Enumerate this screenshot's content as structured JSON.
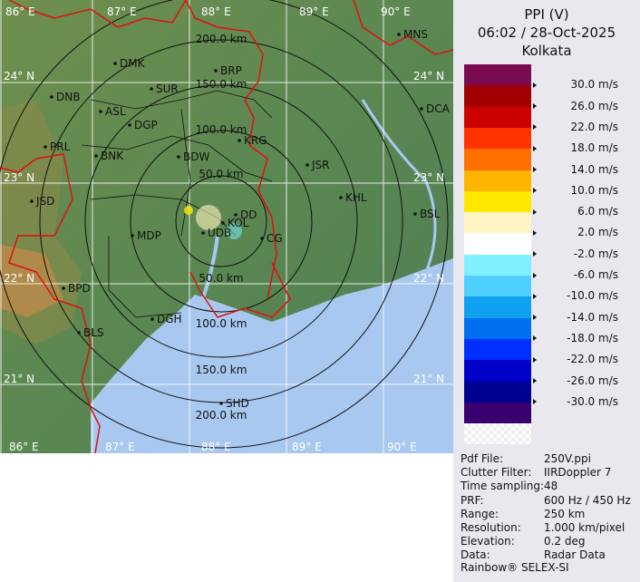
{
  "header": {
    "product": "PPI (V)",
    "datetime": "06:02 / 28-Oct-2025",
    "station": "Kolkata"
  },
  "legend": {
    "unit": "m/s",
    "colors": [
      "#7a0a52",
      "#a00000",
      "#cc0000",
      "#ff3300",
      "#ff7000",
      "#ffb400",
      "#ffe800",
      "#fff5c4",
      "#ffffff",
      "#80f0ff",
      "#50d0ff",
      "#10a0f0",
      "#0070f0",
      "#0030ff",
      "#0000c8",
      "#000090",
      "#3a0070"
    ],
    "labels": [
      "30.0 m/s",
      "26.0 m/s",
      "22.0 m/s",
      "18.0 m/s",
      "14.0 m/s",
      "10.0 m/s",
      "6.0 m/s",
      "2.0 m/s",
      "-2.0 m/s",
      "-6.0 m/s",
      "-10.0 m/s",
      "-14.0 m/s",
      "-18.0 m/s",
      "-22.0 m/s",
      "-26.0 m/s",
      "-30.0 m/s"
    ]
  },
  "info": [
    {
      "key": "Pdf File:",
      "value": "250V.ppi"
    },
    {
      "key": "Clutter Filter:",
      "value": "IIRDoppler 7"
    },
    {
      "key": "Time sampling:",
      "value": "48"
    },
    {
      "key": "PRF:",
      "value": "600 Hz / 450 Hz"
    },
    {
      "key": "Range:",
      "value": "250 km"
    },
    {
      "key": "Resolution:",
      "value": "1.000 km/pixel"
    },
    {
      "key": "Elevation:",
      "value": "0.2 deg"
    },
    {
      "key": "Data:",
      "value": "Radar Data"
    }
  ],
  "footer": "Rainbow® SELEX-SI",
  "map": {
    "lon_labels": [
      "86° E",
      "87° E",
      "88° E",
      "89° E",
      "90° E"
    ],
    "lon_labels_bottom": [
      "86° E",
      "87° E",
      "88° E",
      "89° E",
      "90° E"
    ],
    "lat_labels": [
      "24° N",
      "23° N",
      "22° N",
      "21° N"
    ],
    "range_rings_km": [
      50,
      100,
      150,
      200,
      250
    ],
    "ring_labels_top": [
      "200.0 km",
      "150.0 km",
      "100.0 km",
      "50.0 km"
    ],
    "ring_labels_bottom": [
      "50.0 km",
      "100.0 km",
      "150.0 km",
      "200.0 km"
    ],
    "cities": [
      "MNS",
      "DMK",
      "BRP",
      "DNB",
      "SUR",
      "ASL",
      "DGP",
      "DCA",
      "KRG",
      "PRL",
      "BNK",
      "BDW",
      "JSR",
      "KHL",
      "JSD",
      "BSL",
      "DD",
      "KOL",
      "UDB",
      "MDP",
      "CG",
      "BPD",
      "DGH",
      "BLS",
      "SHD"
    ],
    "land_color": "#5e8a50",
    "sea_color": "#a8c8f0",
    "border_color": "#e01010"
  }
}
